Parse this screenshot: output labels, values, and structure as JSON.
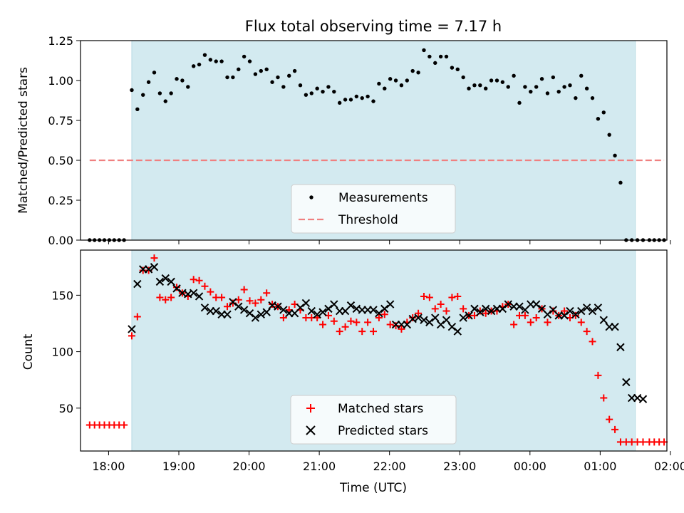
{
  "chart_data": [
    {
      "type": "scatter",
      "title": "Flux total observing time = 7.17 h",
      "xlabel": "",
      "ylabel": "Matched/Predicted stars",
      "xlim": [
        -0.4,
        7.95
      ],
      "ylim": [
        0.0,
        1.25
      ],
      "x_unit": "hours after 18:00 UTC",
      "y_ticks": [
        "0.00",
        "0.25",
        "0.50",
        "0.75",
        "1.00",
        "1.25"
      ],
      "y_tick_values": [
        0.0,
        0.25,
        0.5,
        0.75,
        1.0,
        1.25
      ],
      "observing_window": [
        0.33,
        7.5
      ],
      "shade_color": "#d3eaf0",
      "grid": false,
      "legend_position": "lower center",
      "series": [
        {
          "name": "Measurements",
          "marker": "dot",
          "color": "#000000",
          "x": [
            -0.27,
            -0.2,
            -0.13,
            -0.06,
            0.01,
            0.08,
            0.15,
            0.22,
            0.33,
            0.41,
            0.49,
            0.57,
            0.65,
            0.73,
            0.81,
            0.89,
            0.97,
            1.05,
            1.13,
            1.21,
            1.29,
            1.37,
            1.45,
            1.53,
            1.61,
            1.69,
            1.77,
            1.85,
            1.93,
            2.01,
            2.09,
            2.17,
            2.25,
            2.33,
            2.41,
            2.49,
            2.57,
            2.65,
            2.73,
            2.81,
            2.89,
            2.97,
            3.05,
            3.13,
            3.21,
            3.29,
            3.37,
            3.45,
            3.53,
            3.61,
            3.69,
            3.77,
            3.85,
            3.93,
            4.01,
            4.09,
            4.17,
            4.25,
            4.33,
            4.41,
            4.49,
            4.57,
            4.65,
            4.73,
            4.81,
            4.89,
            4.97,
            5.05,
            5.13,
            5.21,
            5.29,
            5.37,
            5.45,
            5.53,
            5.61,
            5.69,
            5.77,
            5.85,
            5.93,
            6.01,
            6.09,
            6.17,
            6.25,
            6.33,
            6.41,
            6.49,
            6.57,
            6.65,
            6.73,
            6.81,
            6.89,
            6.97,
            7.05,
            7.13,
            7.21,
            7.29,
            7.37,
            7.45,
            7.53,
            7.61,
            7.7,
            7.77,
            7.84,
            7.91
          ],
          "y": [
            0.0,
            0.0,
            0.0,
            0.0,
            0.0,
            0.0,
            0.0,
            0.0,
            0.94,
            0.82,
            0.91,
            0.99,
            1.05,
            0.92,
            0.87,
            0.92,
            1.01,
            1.0,
            0.96,
            1.09,
            1.1,
            1.16,
            1.13,
            1.12,
            1.12,
            1.02,
            1.02,
            1.07,
            1.15,
            1.12,
            1.04,
            1.06,
            1.07,
            0.99,
            1.02,
            0.96,
            1.03,
            1.06,
            0.97,
            0.91,
            0.92,
            0.95,
            0.93,
            0.96,
            0.93,
            0.86,
            0.88,
            0.88,
            0.9,
            0.89,
            0.9,
            0.87,
            0.98,
            0.95,
            1.01,
            1.0,
            0.97,
            1.0,
            1.06,
            1.05,
            1.19,
            1.15,
            1.11,
            1.15,
            1.15,
            1.08,
            1.07,
            1.02,
            0.95,
            0.97,
            0.97,
            0.95,
            1.0,
            1.0,
            0.99,
            0.96,
            1.03,
            0.86,
            0.96,
            0.93,
            0.96,
            1.01,
            0.92,
            1.02,
            0.93,
            0.96,
            0.97,
            0.89,
            1.03,
            0.95,
            0.89,
            0.76,
            0.8,
            0.66,
            0.53,
            0.36,
            0.0,
            0.0,
            0.0,
            0.0,
            0.0,
            0.0,
            0.0,
            0.0
          ]
        },
        {
          "name": "Threshold",
          "marker": "dashed-line",
          "color": "#f08080",
          "x": [
            -0.27,
            7.91
          ],
          "y": [
            0.5,
            0.5
          ]
        }
      ]
    },
    {
      "type": "scatter",
      "title": "",
      "xlabel": "Time (UTC)",
      "ylabel": "Count",
      "xlim": [
        -0.4,
        7.95
      ],
      "ylim": [
        12,
        190
      ],
      "x_unit": "hours after 18:00 UTC",
      "x_ticks": [
        "18:00",
        "19:00",
        "20:00",
        "21:00",
        "22:00",
        "23:00",
        "00:00",
        "01:00",
        "02:00"
      ],
      "x_tick_values": [
        0,
        1,
        2,
        3,
        4,
        5,
        6,
        7,
        8
      ],
      "y_ticks": [
        "50",
        "100",
        "150"
      ],
      "y_tick_values": [
        50,
        100,
        150
      ],
      "observing_window": [
        0.33,
        7.5
      ],
      "shade_color": "#d3eaf0",
      "grid": false,
      "legend_position": "lower center",
      "series": [
        {
          "name": "Matched stars",
          "marker": "plus",
          "color": "#ff0000",
          "x": [
            -0.27,
            -0.2,
            -0.13,
            -0.06,
            0.01,
            0.08,
            0.15,
            0.22,
            0.33,
            0.41,
            0.49,
            0.57,
            0.65,
            0.73,
            0.81,
            0.89,
            0.97,
            1.05,
            1.13,
            1.21,
            1.29,
            1.37,
            1.45,
            1.53,
            1.61,
            1.69,
            1.77,
            1.85,
            1.93,
            2.01,
            2.09,
            2.17,
            2.25,
            2.33,
            2.41,
            2.49,
            2.57,
            2.65,
            2.73,
            2.81,
            2.89,
            2.97,
            3.05,
            3.13,
            3.21,
            3.29,
            3.37,
            3.45,
            3.53,
            3.61,
            3.69,
            3.77,
            3.85,
            3.93,
            4.01,
            4.09,
            4.17,
            4.25,
            4.33,
            4.41,
            4.49,
            4.57,
            4.65,
            4.73,
            4.81,
            4.89,
            4.97,
            5.05,
            5.13,
            5.21,
            5.29,
            5.37,
            5.45,
            5.53,
            5.61,
            5.69,
            5.77,
            5.85,
            5.93,
            6.01,
            6.09,
            6.17,
            6.25,
            6.33,
            6.41,
            6.49,
            6.57,
            6.65,
            6.73,
            6.81,
            6.89,
            6.97,
            7.05,
            7.13,
            7.21,
            7.29,
            7.37,
            7.45,
            7.53,
            7.61,
            7.7,
            7.77,
            7.84,
            7.91
          ],
          "y": [
            35,
            35,
            35,
            35,
            35,
            35,
            35,
            35,
            114,
            131,
            172,
            172,
            183,
            148,
            146,
            148,
            157,
            152,
            149,
            164,
            163,
            158,
            153,
            148,
            148,
            140,
            143,
            146,
            155,
            145,
            143,
            146,
            152,
            142,
            140,
            130,
            137,
            142,
            137,
            130,
            130,
            130,
            124,
            132,
            127,
            118,
            122,
            127,
            126,
            118,
            126,
            118,
            130,
            133,
            124,
            123,
            120,
            126,
            130,
            134,
            149,
            148,
            138,
            142,
            136,
            148,
            149,
            138,
            132,
            132,
            136,
            134,
            136,
            136,
            140,
            142,
            124,
            132,
            132,
            126,
            130,
            138,
            126,
            136,
            132,
            136,
            130,
            132,
            126,
            118,
            109,
            79,
            59,
            40,
            31,
            20,
            20,
            20,
            20,
            20,
            20,
            20,
            20,
            20
          ]
        },
        {
          "name": "Predicted stars",
          "marker": "x",
          "color": "#000000",
          "x": [
            0.33,
            0.41,
            0.49,
            0.57,
            0.65,
            0.73,
            0.81,
            0.89,
            0.97,
            1.05,
            1.13,
            1.21,
            1.29,
            1.37,
            1.45,
            1.53,
            1.61,
            1.69,
            1.77,
            1.85,
            1.93,
            2.01,
            2.09,
            2.17,
            2.25,
            2.33,
            2.41,
            2.49,
            2.57,
            2.65,
            2.73,
            2.81,
            2.89,
            2.97,
            3.05,
            3.13,
            3.21,
            3.29,
            3.37,
            3.45,
            3.53,
            3.61,
            3.69,
            3.77,
            3.85,
            3.93,
            4.01,
            4.09,
            4.17,
            4.25,
            4.33,
            4.41,
            4.49,
            4.57,
            4.65,
            4.73,
            4.81,
            4.89,
            4.97,
            5.05,
            5.13,
            5.21,
            5.29,
            5.37,
            5.45,
            5.53,
            5.61,
            5.69,
            5.77,
            5.85,
            5.93,
            6.01,
            6.09,
            6.17,
            6.25,
            6.33,
            6.41,
            6.49,
            6.57,
            6.65,
            6.73,
            6.81,
            6.89,
            6.97,
            7.05,
            7.13,
            7.21,
            7.29,
            7.37,
            7.45,
            7.53,
            7.61
          ],
          "y": [
            120,
            160,
            173,
            173,
            175,
            162,
            165,
            162,
            156,
            152,
            151,
            152,
            149,
            139,
            136,
            136,
            133,
            133,
            144,
            140,
            137,
            134,
            130,
            133,
            135,
            141,
            140,
            137,
            134,
            134,
            139,
            143,
            136,
            133,
            135,
            138,
            142,
            136,
            136,
            141,
            138,
            137,
            137,
            137,
            134,
            138,
            142,
            124,
            124,
            124,
            129,
            130,
            128,
            126,
            130,
            124,
            128,
            122,
            118,
            130,
            132,
            138,
            135,
            138,
            136,
            138,
            138,
            142,
            140,
            140,
            137,
            142,
            142,
            138,
            133,
            137,
            132,
            132,
            136,
            133,
            136,
            139,
            136,
            139,
            128,
            122,
            122,
            104,
            73,
            59,
            59,
            58
          ]
        }
      ]
    }
  ]
}
